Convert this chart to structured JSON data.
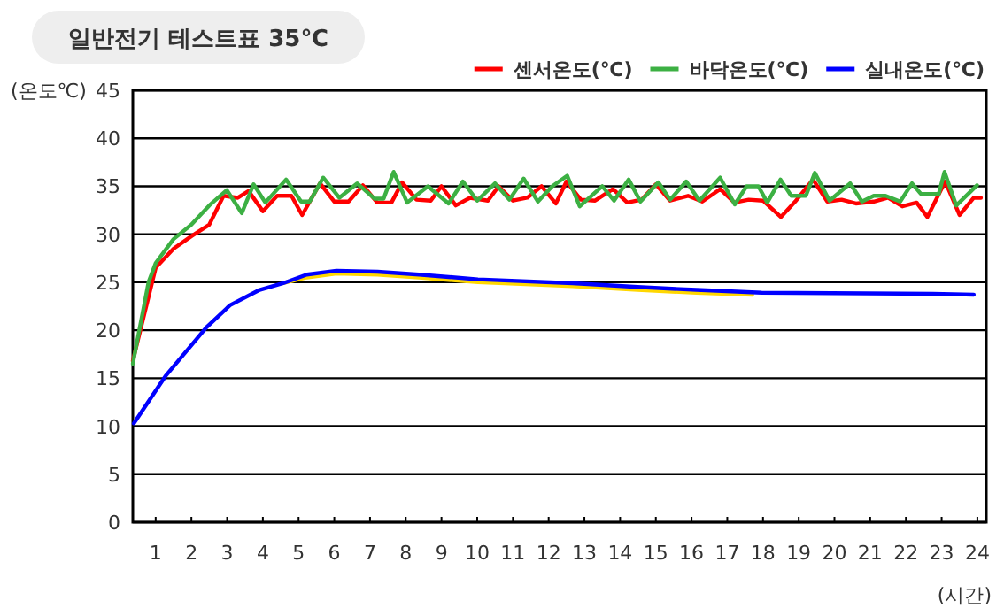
{
  "chart_data": {
    "type": "line",
    "title": "일반전기 테스트표 35℃",
    "ylabel": "(온도℃)",
    "xlabel": "(시간)",
    "xlim": [
      0.36,
      24.25
    ],
    "xticks": [
      1,
      2,
      3,
      4,
      5,
      6,
      7,
      8,
      9,
      10,
      11,
      12,
      13,
      14,
      15,
      16,
      17,
      18,
      19,
      20,
      21,
      22,
      23,
      24
    ],
    "ylim": [
      0,
      45
    ],
    "yticks": [
      0,
      5,
      10,
      15,
      20,
      25,
      30,
      35,
      40,
      45
    ],
    "grid": "y",
    "legend": "top right",
    "marker": "none",
    "line_style": "solid",
    "series": [
      {
        "color": "#ffd700",
        "x": [
          4.57,
          5.23,
          6.06,
          7.21,
          8.37,
          10.02,
          12.67,
          14.49,
          16.14,
          17.7
        ],
        "values": [
          24.9,
          25.5,
          25.9,
          25.8,
          25.5,
          25.0,
          24.6,
          24.2,
          23.9,
          23.7
        ]
      },
      {
        "name": "센서온도(℃)",
        "color": "#ff0000",
        "x": [
          0.36,
          1,
          1.5,
          2,
          2.5,
          2.9,
          3.3,
          3.6,
          4.0,
          4.4,
          4.8,
          5.1,
          5.6,
          6.0,
          6.4,
          6.8,
          7.2,
          7.6,
          7.9,
          8.3,
          8.7,
          9.0,
          9.4,
          9.8,
          10.3,
          10.6,
          11.0,
          11.4,
          11.8,
          12.2,
          12.5,
          12.9,
          13.3,
          13.8,
          14.2,
          14.6,
          15.0,
          15.4,
          15.9,
          16.3,
          16.8,
          17.2,
          17.6,
          18.0,
          18.5,
          18.9,
          19.4,
          19.8,
          20.2,
          20.6,
          21.1,
          21.5,
          21.9,
          22.3,
          22.6,
          23.1,
          23.5,
          23.9,
          24.1
        ],
        "values": [
          16.8,
          26.5,
          28.5,
          29.8,
          31,
          34,
          33.8,
          34.5,
          32.4,
          34,
          34,
          32,
          35.3,
          33.4,
          33.4,
          35.1,
          33.3,
          33.3,
          35.4,
          33.6,
          33.5,
          35.0,
          33.0,
          33.8,
          33.5,
          35.0,
          33.5,
          33.8,
          35.0,
          33.2,
          35.5,
          33.6,
          33.5,
          34.7,
          33.3,
          33.6,
          35.2,
          33.5,
          34.0,
          33.4,
          34.7,
          33.3,
          33.6,
          33.5,
          31.8,
          33.4,
          35.7,
          33.4,
          33.6,
          33.2,
          33.4,
          33.8,
          32.9,
          33.3,
          31.8,
          35.5,
          32.0,
          33.8,
          33.8
        ]
      },
      {
        "name": "바닥온도(℃)",
        "color": "#3cb043",
        "x": [
          0.36,
          0.8,
          1,
          1.5,
          2,
          2.5,
          2.99,
          3.41,
          3.74,
          4.07,
          4.65,
          5.07,
          5.31,
          5.69,
          6.14,
          6.64,
          7.13,
          7.38,
          7.66,
          8.04,
          8.62,
          9.2,
          9.6,
          10.0,
          10.5,
          10.9,
          11.3,
          11.7,
          12.1,
          12.52,
          12.87,
          13.5,
          13.83,
          14.24,
          14.57,
          15.07,
          15.4,
          15.85,
          16.22,
          16.8,
          17.21,
          17.54,
          17.87,
          18.12,
          18.49,
          18.79,
          19.2,
          19.45,
          19.86,
          20.44,
          20.77,
          21.1,
          21.43,
          21.84,
          22.17,
          22.42,
          22.92,
          23.08,
          23.41,
          23.99
        ],
        "values": [
          16.5,
          25,
          27,
          29.5,
          31,
          33,
          34.6,
          32.2,
          35.2,
          33.3,
          35.7,
          33.4,
          33.4,
          35.9,
          33.8,
          35.3,
          33.7,
          33.7,
          36.5,
          33.3,
          35.0,
          33.2,
          35.5,
          33.5,
          35.3,
          33.6,
          35.8,
          33.4,
          35.0,
          36.1,
          32.9,
          35.0,
          33.5,
          35.7,
          33.4,
          35.4,
          33.6,
          35.5,
          33.5,
          35.9,
          33.1,
          35.0,
          35.0,
          33.3,
          35.7,
          34.0,
          34.0,
          36.4,
          33.5,
          35.3,
          33.4,
          34.0,
          34.0,
          33.4,
          35.3,
          34.2,
          34.2,
          36.5,
          33.0,
          35.1
        ]
      },
      {
        "name": "실내온도(℃)",
        "color": "#0000ff",
        "x": [
          0.39,
          1.27,
          2.42,
          3.08,
          3.91,
          4.57,
          5.23,
          6.06,
          7.21,
          8.37,
          10.02,
          12.67,
          14.49,
          16.14,
          17.96,
          22.75,
          23.9
        ],
        "values": [
          10.3,
          15.2,
          20.3,
          22.6,
          24.2,
          24.9,
          25.8,
          26.2,
          26.1,
          25.8,
          25.3,
          24.9,
          24.5,
          24.2,
          23.9,
          23.8,
          23.7
        ]
      }
    ]
  }
}
